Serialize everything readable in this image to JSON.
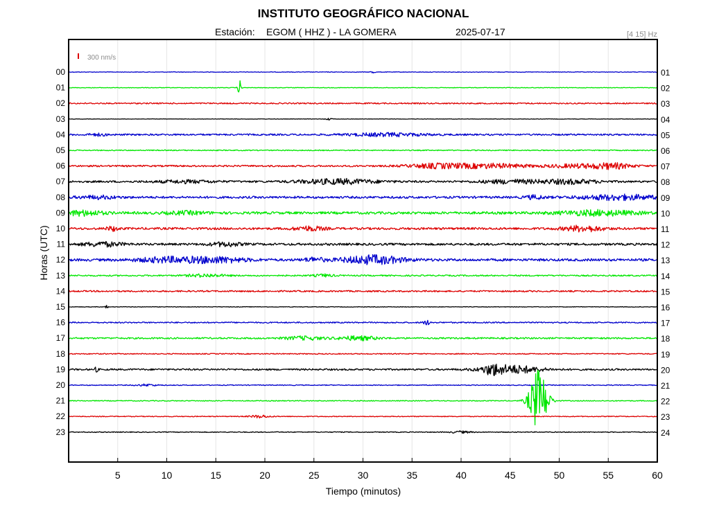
{
  "header": {
    "title": "INSTITUTO GEOGRÁFICO NACIONAL",
    "station_label": "Estación:",
    "station_name": "EGOM ( HHZ ) - LA GOMERA",
    "date": "2025-07-17",
    "frequency_band": "[4 15] Hz",
    "scale_label": "300 nm/s"
  },
  "colors": {
    "blue": "#0000cc",
    "green": "#00e600",
    "red": "#dd0000",
    "black": "#000000",
    "scale_marker": "#dd0000",
    "grid": "#e6e6e6"
  },
  "chart_data": {
    "type": "line",
    "subtype": "helicorder",
    "xlabel": "Tiempo (minutos)",
    "ylabel": "Horas (UTC)",
    "xlim": [
      0,
      60
    ],
    "x_ticks": [
      5,
      10,
      15,
      20,
      25,
      30,
      35,
      40,
      45,
      50,
      55,
      60
    ],
    "grid": "vertical",
    "color_cycle": [
      "blue",
      "green",
      "red",
      "black"
    ],
    "left_hour_labels": [
      "00",
      "01",
      "02",
      "03",
      "04",
      "05",
      "06",
      "07",
      "08",
      "09",
      "10",
      "11",
      "12",
      "13",
      "14",
      "15",
      "16",
      "17",
      "18",
      "19",
      "20",
      "21",
      "22",
      "23"
    ],
    "right_hour_labels": [
      "01",
      "02",
      "03",
      "04",
      "05",
      "06",
      "07",
      "08",
      "09",
      "10",
      "11",
      "12",
      "13",
      "14",
      "15",
      "16",
      "17",
      "18",
      "19",
      "20",
      "21",
      "22",
      "23",
      "24"
    ],
    "traces": [
      {
        "hour": "00",
        "color": "blue",
        "noise": 0.4,
        "events": [
          {
            "t": 31.0,
            "amp": 2.5,
            "dur": 0.2
          }
        ]
      },
      {
        "hour": "01",
        "color": "green",
        "noise": 0.4,
        "events": [
          {
            "t": 17.4,
            "amp": 12,
            "dur": 0.15
          }
        ]
      },
      {
        "hour": "02",
        "color": "red",
        "noise": 0.9,
        "events": []
      },
      {
        "hour": "03",
        "color": "black",
        "noise": 0.3,
        "events": [
          {
            "t": 26.5,
            "amp": 1.5,
            "dur": 0.3
          }
        ]
      },
      {
        "hour": "04",
        "color": "blue",
        "noise": 1.2,
        "events": [
          {
            "t": 32.5,
            "amp": 2.2,
            "dur": 4.0
          },
          {
            "t": 3.0,
            "amp": 1.5,
            "dur": 1.0
          }
        ]
      },
      {
        "hour": "05",
        "color": "green",
        "noise": 0.7,
        "events": []
      },
      {
        "hour": "06",
        "color": "red",
        "noise": 1.2,
        "events": [
          {
            "t": 37.5,
            "amp": 3.0,
            "dur": 3.0
          },
          {
            "t": 43.0,
            "amp": 3.0,
            "dur": 4.0
          },
          {
            "t": 52.0,
            "amp": 2.5,
            "dur": 3.0
          },
          {
            "t": 55.5,
            "amp": 3.5,
            "dur": 2.0
          }
        ]
      },
      {
        "hour": "07",
        "color": "black",
        "noise": 1.4,
        "events": [
          {
            "t": 27.5,
            "amp": 3.5,
            "dur": 4.0
          },
          {
            "t": 45.0,
            "amp": 2.5,
            "dur": 3.0
          },
          {
            "t": 51.0,
            "amp": 3.0,
            "dur": 3.0
          },
          {
            "t": 12.0,
            "amp": 1.8,
            "dur": 3.0
          }
        ]
      },
      {
        "hour": "08",
        "color": "blue",
        "noise": 1.6,
        "events": [
          {
            "t": 56.0,
            "amp": 3.5,
            "dur": 4.0
          },
          {
            "t": 47.5,
            "amp": 2.5,
            "dur": 1.0
          },
          {
            "t": 3.0,
            "amp": 2.0,
            "dur": 2.0
          }
        ]
      },
      {
        "hour": "09",
        "color": "green",
        "noise": 1.8,
        "events": [
          {
            "t": 1.5,
            "amp": 3.5,
            "dur": 2.0
          },
          {
            "t": 54.0,
            "amp": 3.5,
            "dur": 4.0
          },
          {
            "t": 12.0,
            "amp": 2.0,
            "dur": 2.0
          }
        ]
      },
      {
        "hour": "10",
        "color": "red",
        "noise": 1.6,
        "events": [
          {
            "t": 52.5,
            "amp": 4.0,
            "dur": 2.0
          },
          {
            "t": 4.5,
            "amp": 3.0,
            "dur": 0.6
          },
          {
            "t": 24.5,
            "amp": 3.0,
            "dur": 1.5
          }
        ]
      },
      {
        "hour": "11",
        "color": "black",
        "noise": 1.6,
        "events": [
          {
            "t": 3.5,
            "amp": 3.0,
            "dur": 2.0
          },
          {
            "t": 16.0,
            "amp": 2.8,
            "dur": 1.5
          }
        ]
      },
      {
        "hour": "12",
        "color": "blue",
        "noise": 1.8,
        "events": [
          {
            "t": 31.0,
            "amp": 6.0,
            "dur": 3.0
          },
          {
            "t": 15.0,
            "amp": 4.0,
            "dur": 3.0
          },
          {
            "t": 10.0,
            "amp": 3.5,
            "dur": 3.0
          },
          {
            "t": 25.0,
            "amp": 3.0,
            "dur": 1.0
          }
        ]
      },
      {
        "hour": "13",
        "color": "green",
        "noise": 1.0,
        "events": [
          {
            "t": 14.0,
            "amp": 2.0,
            "dur": 2.0
          },
          {
            "t": 26.0,
            "amp": 1.8,
            "dur": 1.0
          }
        ]
      },
      {
        "hour": "14",
        "color": "red",
        "noise": 1.1,
        "events": []
      },
      {
        "hour": "15",
        "color": "black",
        "noise": 0.4,
        "events": [
          {
            "t": 3.8,
            "amp": 2.5,
            "dur": 0.2
          }
        ]
      },
      {
        "hour": "16",
        "color": "blue",
        "noise": 0.9,
        "events": [
          {
            "t": 36.5,
            "amp": 3.0,
            "dur": 0.4
          }
        ]
      },
      {
        "hour": "17",
        "color": "green",
        "noise": 1.1,
        "events": [
          {
            "t": 24.0,
            "amp": 2.5,
            "dur": 2.0
          },
          {
            "t": 29.5,
            "amp": 3.0,
            "dur": 2.0
          }
        ]
      },
      {
        "hour": "18",
        "color": "red",
        "noise": 0.7,
        "events": []
      },
      {
        "hour": "19",
        "color": "black",
        "noise": 1.2,
        "events": [
          {
            "t": 45.0,
            "amp": 6.0,
            "dur": 3.0
          },
          {
            "t": 43.2,
            "amp": 5.0,
            "dur": 0.8
          },
          {
            "t": 2.8,
            "amp": 3.0,
            "dur": 0.2
          }
        ]
      },
      {
        "hour": "20",
        "color": "blue",
        "noise": 0.6,
        "events": [
          {
            "t": 8.0,
            "amp": 1.5,
            "dur": 1.0
          }
        ]
      },
      {
        "hour": "21",
        "color": "green",
        "noise": 0.6,
        "events": [
          {
            "t": 47.9,
            "amp": 45,
            "dur": 0.9
          }
        ]
      },
      {
        "hour": "22",
        "color": "red",
        "noise": 0.6,
        "events": [
          {
            "t": 19.5,
            "amp": 2.0,
            "dur": 1.0
          }
        ]
      },
      {
        "hour": "23",
        "color": "black",
        "noise": 0.6,
        "events": [
          {
            "t": 40.0,
            "amp": 1.5,
            "dur": 1.0
          }
        ]
      }
    ]
  }
}
